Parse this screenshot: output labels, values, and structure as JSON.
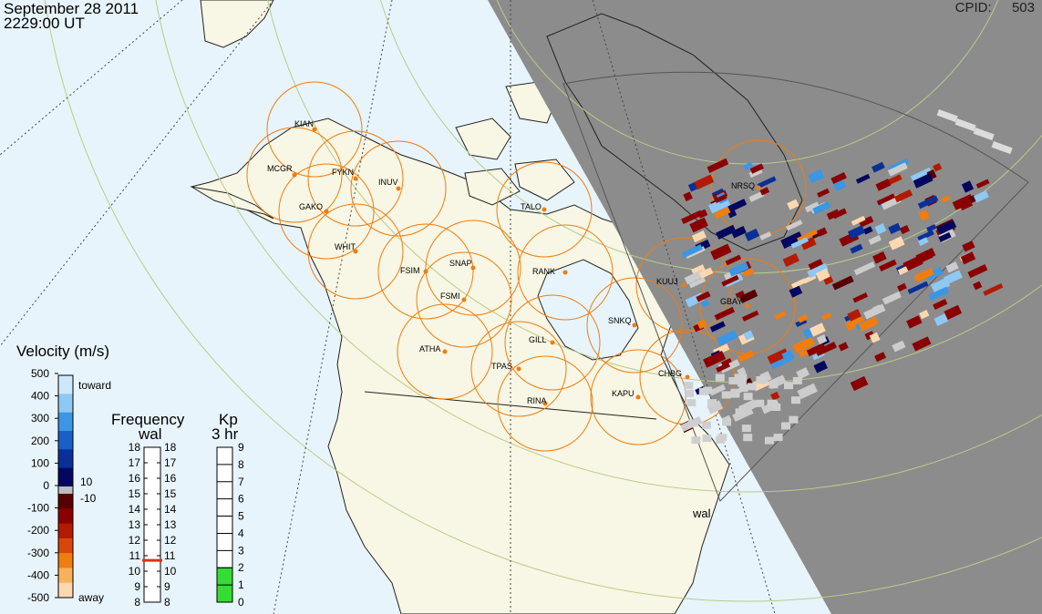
{
  "header": {
    "date": "September 28 2011",
    "time": "2229:00 UT",
    "cpid_label": "CPID:",
    "cpid_value": "503"
  },
  "stations": [
    {
      "code": "KIAN"
    },
    {
      "code": "MCGR"
    },
    {
      "code": "FYKN"
    },
    {
      "code": "INUV"
    },
    {
      "code": "GAKO"
    },
    {
      "code": "WHIT"
    },
    {
      "code": "FSIM"
    },
    {
      "code": "SNAP"
    },
    {
      "code": "FSMI"
    },
    {
      "code": "RANK"
    },
    {
      "code": "TALO"
    },
    {
      "code": "ATHA"
    },
    {
      "code": "GILL"
    },
    {
      "code": "TPAS"
    },
    {
      "code": "RINA"
    },
    {
      "code": "SNKQ"
    },
    {
      "code": "KUUJ"
    },
    {
      "code": "GBAY"
    },
    {
      "code": "NRSQ"
    },
    {
      "code": "CHBG"
    },
    {
      "code": "KAPU"
    }
  ],
  "radar_label": "wal",
  "velocity_scale": {
    "title": "Velocity (m/s)",
    "ticks": [
      "500",
      "400",
      "300",
      "200",
      "100",
      "0",
      "-100",
      "-200",
      "-300",
      "-400",
      "-500"
    ],
    "toward_label": "toward",
    "away_label": "away",
    "ground_scatter_upper": "10",
    "ground_scatter_lower": "-10",
    "toward_colors": [
      "#cde8fb",
      "#8fc8f2",
      "#3b96e3",
      "#1a5fc8",
      "#0a2f98",
      "#03075e"
    ],
    "away_colors": [
      "#560000",
      "#8a0000",
      "#b31a00",
      "#d8460a",
      "#ef7d10",
      "#f8b15c",
      "#fcd8b0"
    ]
  },
  "frequency_scale": {
    "title": "Frequency",
    "subtitle": "wal",
    "ticks": [
      "18",
      "17",
      "16",
      "15",
      "14",
      "13",
      "12",
      "11",
      "10",
      "9",
      "8"
    ],
    "current_mhz": 10.7
  },
  "kp_scale": {
    "title": "Kp",
    "subtitle": "3 hr",
    "ticks": [
      "9",
      "8",
      "7",
      "6",
      "5",
      "4",
      "3",
      "2",
      "1",
      "0"
    ],
    "current_value": 2,
    "fill_color": "#33dd33"
  },
  "colors": {
    "ocean": "#e8f4fb",
    "land": "#f8f6e4",
    "night": "#8c8c8c",
    "grid": "#b8cc88",
    "fov_ring": "#ef7d10",
    "station": "#ef7d10"
  }
}
